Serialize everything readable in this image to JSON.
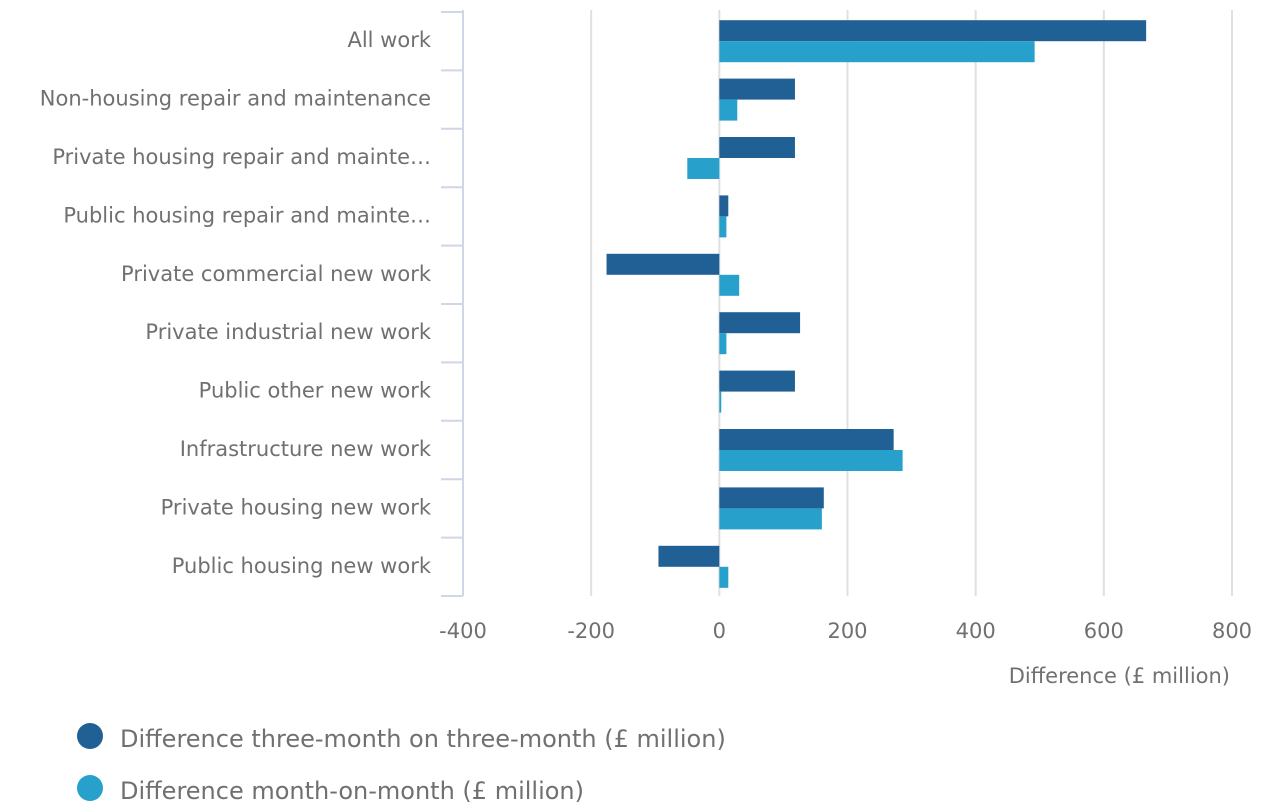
{
  "chart_data": {
    "type": "bar",
    "orientation": "horizontal",
    "categories": [
      "All work",
      "Non-housing repair and maintenance",
      "Private housing repair and mainte…",
      "Public housing repair and mainte…",
      "Private commercial new work",
      "Private industrial new work",
      "Public other new work",
      "Infrastructure new work",
      "Private housing new work",
      "Public housing new work"
    ],
    "series": [
      {
        "name": "Difference three-month on three-month (£ million)",
        "color": "#206095",
        "values": [
          666,
          118,
          118,
          14,
          -176,
          126,
          118,
          272,
          163,
          -95
        ]
      },
      {
        "name": "Difference month-on-month (£ million)",
        "color": "#27a0cc",
        "values": [
          492,
          28,
          -50,
          11,
          31,
          11,
          3,
          286,
          160,
          14
        ]
      }
    ],
    "x_label": "Difference (£ million)",
    "xlim": [
      -400,
      800
    ],
    "xticks": [
      -400,
      -200,
      0,
      200,
      400,
      600,
      800
    ],
    "grid": true
  }
}
